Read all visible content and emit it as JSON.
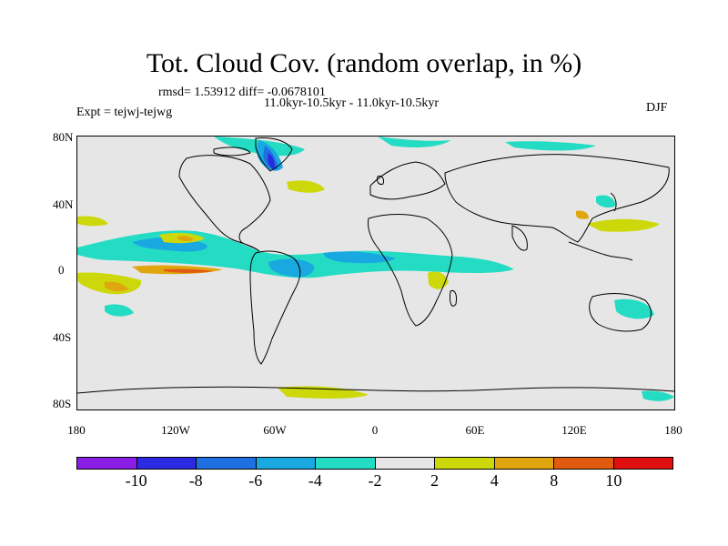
{
  "title": "Tot. Cloud Cov. (random overlap, in %)",
  "subtitle_line1": "rmsd= 1.53912 diff= -0.0678101",
  "subtitle_line2": "11.0kyr-10.5kyr - 11.0kyr-10.5kyr",
  "experiment_label": "Expt = tejwj-tejwg",
  "season_label": "DJF",
  "lat_ticks": [
    "80N",
    "40N",
    "0",
    "40S",
    "80S"
  ],
  "lon_ticks": [
    "180",
    "120W",
    "60W",
    "0",
    "60E",
    "120E",
    "180"
  ],
  "colorbar": {
    "colors": [
      "#8a1ee6",
      "#2a2ae0",
      "#1f6fe0",
      "#1aa8e0",
      "#24dcc4",
      "#e6e6e6",
      "#cdd80a",
      "#e0a60f",
      "#e05a10",
      "#e01010"
    ],
    "labels": [
      "-10",
      "-8",
      "-6",
      "-4",
      "-2",
      "2",
      "4",
      "8",
      "10"
    ]
  },
  "colors": {
    "neutral": "#e6e6e6",
    "cyan": "#24dcc4",
    "sky": "#1aa8e0",
    "blue": "#1f6fe0",
    "deep_blue": "#2a2ae0",
    "yellow": "#cdd80a",
    "orange": "#e0a60f",
    "dark_orange": "#e05a10",
    "red": "#e01010"
  }
}
